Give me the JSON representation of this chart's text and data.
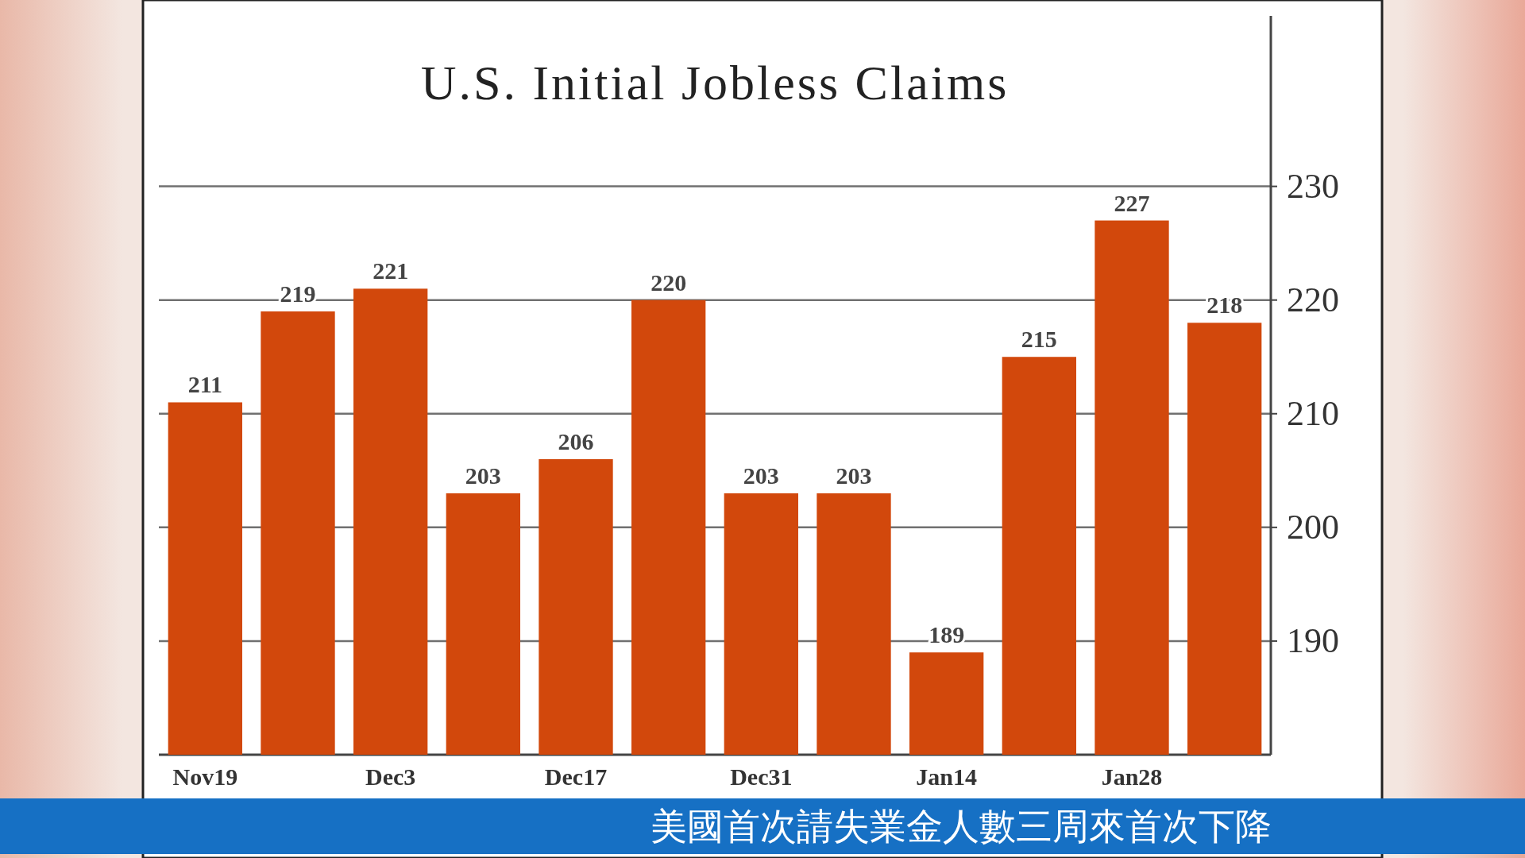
{
  "chart_data": {
    "type": "bar",
    "title": "U.S. Initial Jobless Claims",
    "categories": [
      "Nov19",
      null,
      "Dec3",
      null,
      "Dec17",
      null,
      "Dec31",
      null,
      "Jan14",
      null,
      "Jan28",
      null
    ],
    "values": [
      211,
      219,
      221,
      203,
      206,
      220,
      203,
      203,
      189,
      215,
      227,
      218
    ],
    "color": "#d2480c",
    "ylim": [
      180,
      245
    ],
    "yticks": [
      190,
      200,
      210,
      220,
      230
    ],
    "grid": "y",
    "data_labels": true,
    "annotations": [
      "美國首次請失業金人數三周來首次下降"
    ]
  }
}
